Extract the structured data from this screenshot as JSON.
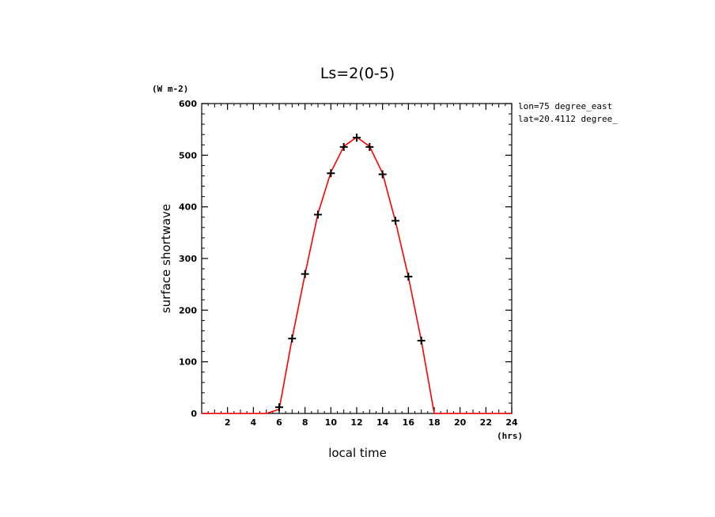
{
  "chart_data": {
    "type": "line",
    "title": "Ls=2(0-5)",
    "xlabel": "local time",
    "ylabel": "surface shortwave",
    "x_unit": "(hrs)",
    "y_unit": "(W m-2)",
    "annotations": [
      "lon=75 degree_east",
      "lat=20.4112 degree_"
    ],
    "xlim": [
      0,
      24
    ],
    "ylim": [
      0,
      600
    ],
    "x_ticks": [
      2,
      4,
      6,
      8,
      10,
      12,
      14,
      16,
      18,
      20,
      22,
      24
    ],
    "y_ticks": [
      0,
      100,
      200,
      300,
      400,
      500,
      600
    ],
    "series": [
      {
        "color": "#ff0000",
        "x": [
          0,
          1,
          2,
          3,
          4,
          5,
          6,
          7,
          8,
          9,
          10,
          11,
          12,
          13,
          14,
          15,
          16,
          17,
          18,
          19,
          20,
          21,
          22,
          23,
          24
        ],
        "values": [
          0,
          0,
          0,
          0,
          0,
          0,
          8,
          145,
          270,
          387,
          467,
          517,
          535,
          517,
          465,
          372,
          265,
          141,
          0,
          0,
          0,
          0,
          0,
          0,
          0
        ]
      }
    ],
    "markers": {
      "symbol": "+",
      "color": "#000000",
      "x": [
        6,
        7,
        8,
        9,
        10,
        11,
        12,
        13,
        14,
        15,
        16,
        17
      ],
      "values": [
        12,
        145,
        270,
        385,
        465,
        516,
        534,
        516,
        463,
        373,
        265,
        141
      ]
    },
    "grid": false,
    "legend": "none"
  }
}
